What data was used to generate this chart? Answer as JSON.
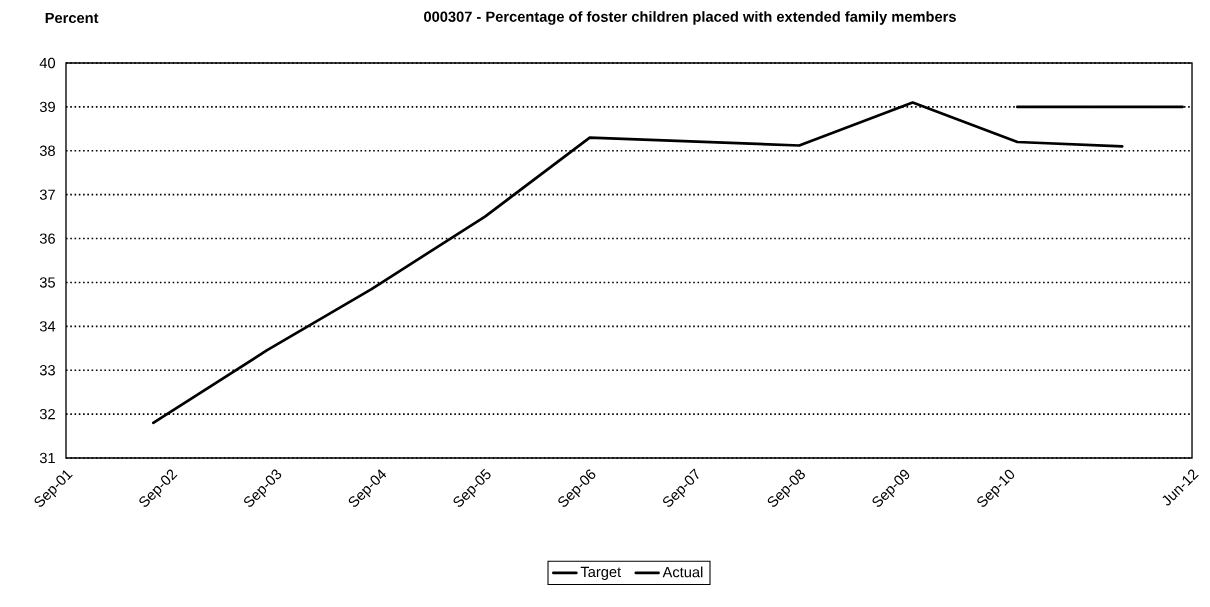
{
  "chart_data": {
    "type": "line",
    "title": "000307 - Percentage of foster children placed with extended family members",
    "ylabel": "Percent",
    "xlim": [
      "2001-09",
      "2012-06"
    ],
    "xticks": [
      {
        "value": "2001-09",
        "label": "Sep-01"
      },
      {
        "value": "2002-09",
        "label": "Sep-02"
      },
      {
        "value": "2003-09",
        "label": "Sep-03"
      },
      {
        "value": "2004-09",
        "label": "Sep-04"
      },
      {
        "value": "2005-09",
        "label": "Sep-05"
      },
      {
        "value": "2006-09",
        "label": "Sep-06"
      },
      {
        "value": "2007-09",
        "label": "Sep-07"
      },
      {
        "value": "2008-09",
        "label": "Sep-08"
      },
      {
        "value": "2009-09",
        "label": "Sep-09"
      },
      {
        "value": "2010-09",
        "label": "Sep-10"
      },
      {
        "value": "2012-06",
        "label": "Jun-12"
      }
    ],
    "ylim": [
      31,
      40
    ],
    "yticks": [
      31,
      32,
      33,
      34,
      35,
      36,
      37,
      38,
      39,
      40
    ],
    "grid": "y",
    "legend": "bottom",
    "series": [
      {
        "name": "Target",
        "color": "#000000",
        "line_style": "dotted",
        "x": [
          "2010-10",
          "2012-05"
        ],
        "values": [
          39,
          39
        ]
      },
      {
        "name": "Actual",
        "color": "#000000",
        "line_style": "solid",
        "x": [
          "2002-07",
          "2003-08",
          "2004-08",
          "2005-09",
          "2006-09",
          "2008-09",
          "2009-10",
          "2010-10",
          "2011-10"
        ],
        "values": [
          31.8,
          33.45,
          34.85,
          36.5,
          38.3,
          38.12,
          39.1,
          38.2,
          38.1
        ]
      }
    ]
  }
}
